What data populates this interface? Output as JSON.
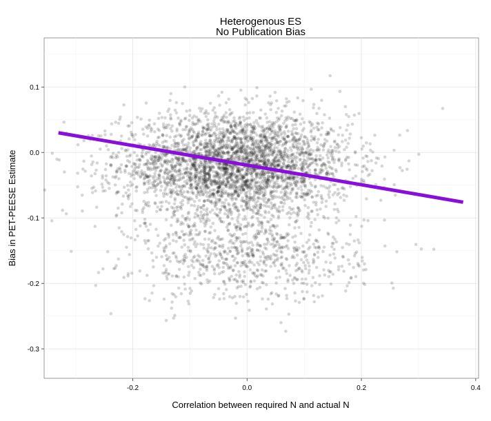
{
  "chart_data": {
    "type": "scatter",
    "title": "Heterogenous ES",
    "subtitle": "No Publication Bias",
    "xlabel": "Correlation between required N and actual N",
    "ylabel": "Bias in PET-PEESE Estimate",
    "xlim": [
      -0.355,
      0.405
    ],
    "ylim": [
      -0.345,
      0.175
    ],
    "x_ticks": [
      -0.2,
      0.0,
      0.2,
      0.4
    ],
    "x_tick_labels": [
      "-0.2",
      "0.0",
      "0.2",
      "0.4"
    ],
    "y_ticks": [
      0.1,
      0.0,
      -0.1,
      -0.2,
      -0.3
    ],
    "y_tick_labels": [
      "0.1",
      "0.0",
      "-0.1",
      "-0.2",
      "-0.3"
    ],
    "grid": true,
    "point_color": "#000000",
    "point_opacity": 0.16,
    "clusters": [
      {
        "name": "main",
        "center_x": -0.02,
        "center_y": -0.02,
        "sd_x": 0.1,
        "sd_y": 0.04,
        "n": 3400
      },
      {
        "name": "lower",
        "center_x": 0.0,
        "center_y": -0.16,
        "sd_x": 0.1,
        "sd_y": 0.035,
        "n": 750
      }
    ],
    "trend_line": {
      "color": "#8a0edb",
      "x": [
        -0.33,
        0.378
      ],
      "y": [
        0.03,
        -0.076
      ]
    }
  }
}
